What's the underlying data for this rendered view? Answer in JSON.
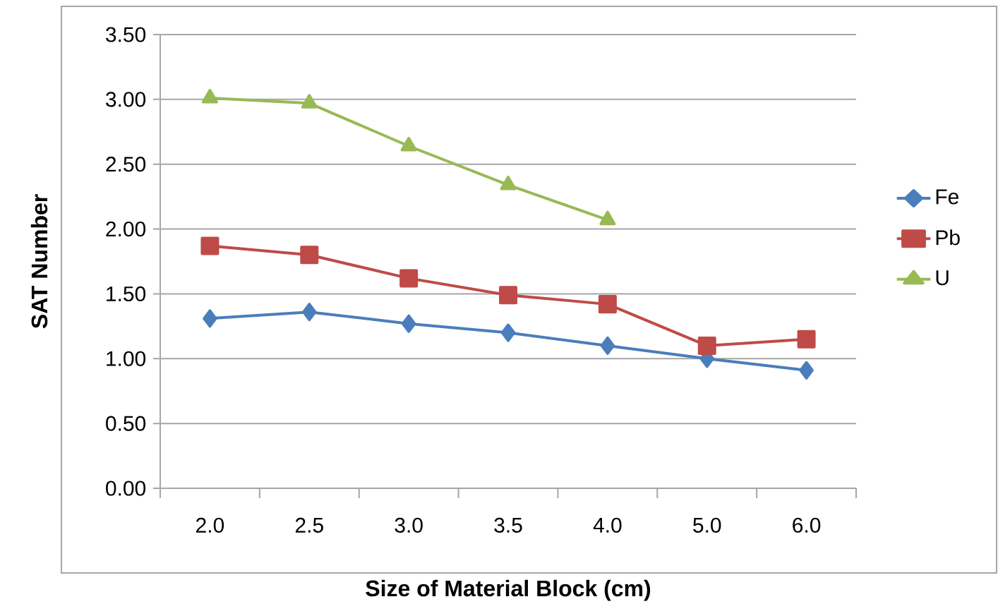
{
  "chart_data": {
    "type": "line",
    "xlabel": "Size of Material Block (cm)",
    "ylabel": "SAT Number",
    "categories": [
      "2.0",
      "2.5",
      "3.0",
      "3.5",
      "4.0",
      "5.0",
      "6.0"
    ],
    "series": [
      {
        "name": "Fe",
        "color": "#4a7ebb",
        "marker": "diamond",
        "values": [
          1.31,
          1.36,
          1.27,
          1.2,
          1.1,
          1.0,
          0.91
        ]
      },
      {
        "name": "Pb",
        "color": "#be4b48",
        "marker": "square",
        "values": [
          1.87,
          1.8,
          1.62,
          1.49,
          1.42,
          1.1,
          1.15
        ]
      },
      {
        "name": "U",
        "color": "#98b954",
        "marker": "triangle",
        "values": [
          3.01,
          2.97,
          2.64,
          2.34,
          2.07,
          null,
          null
        ]
      }
    ],
    "ylim": [
      0,
      3.5
    ],
    "yticks": [
      {
        "value": 0,
        "label": "0.00"
      },
      {
        "value": 0.5,
        "label": "0.50"
      },
      {
        "value": 1,
        "label": "1.00"
      },
      {
        "value": 1.5,
        "label": "1.50"
      },
      {
        "value": 2,
        "label": "2.00"
      },
      {
        "value": 2.5,
        "label": "2.50"
      },
      {
        "value": 3,
        "label": "3.00"
      },
      {
        "value": 3.5,
        "label": "3.50"
      }
    ],
    "grid": "y",
    "legend": "right",
    "line_style": "solid"
  }
}
